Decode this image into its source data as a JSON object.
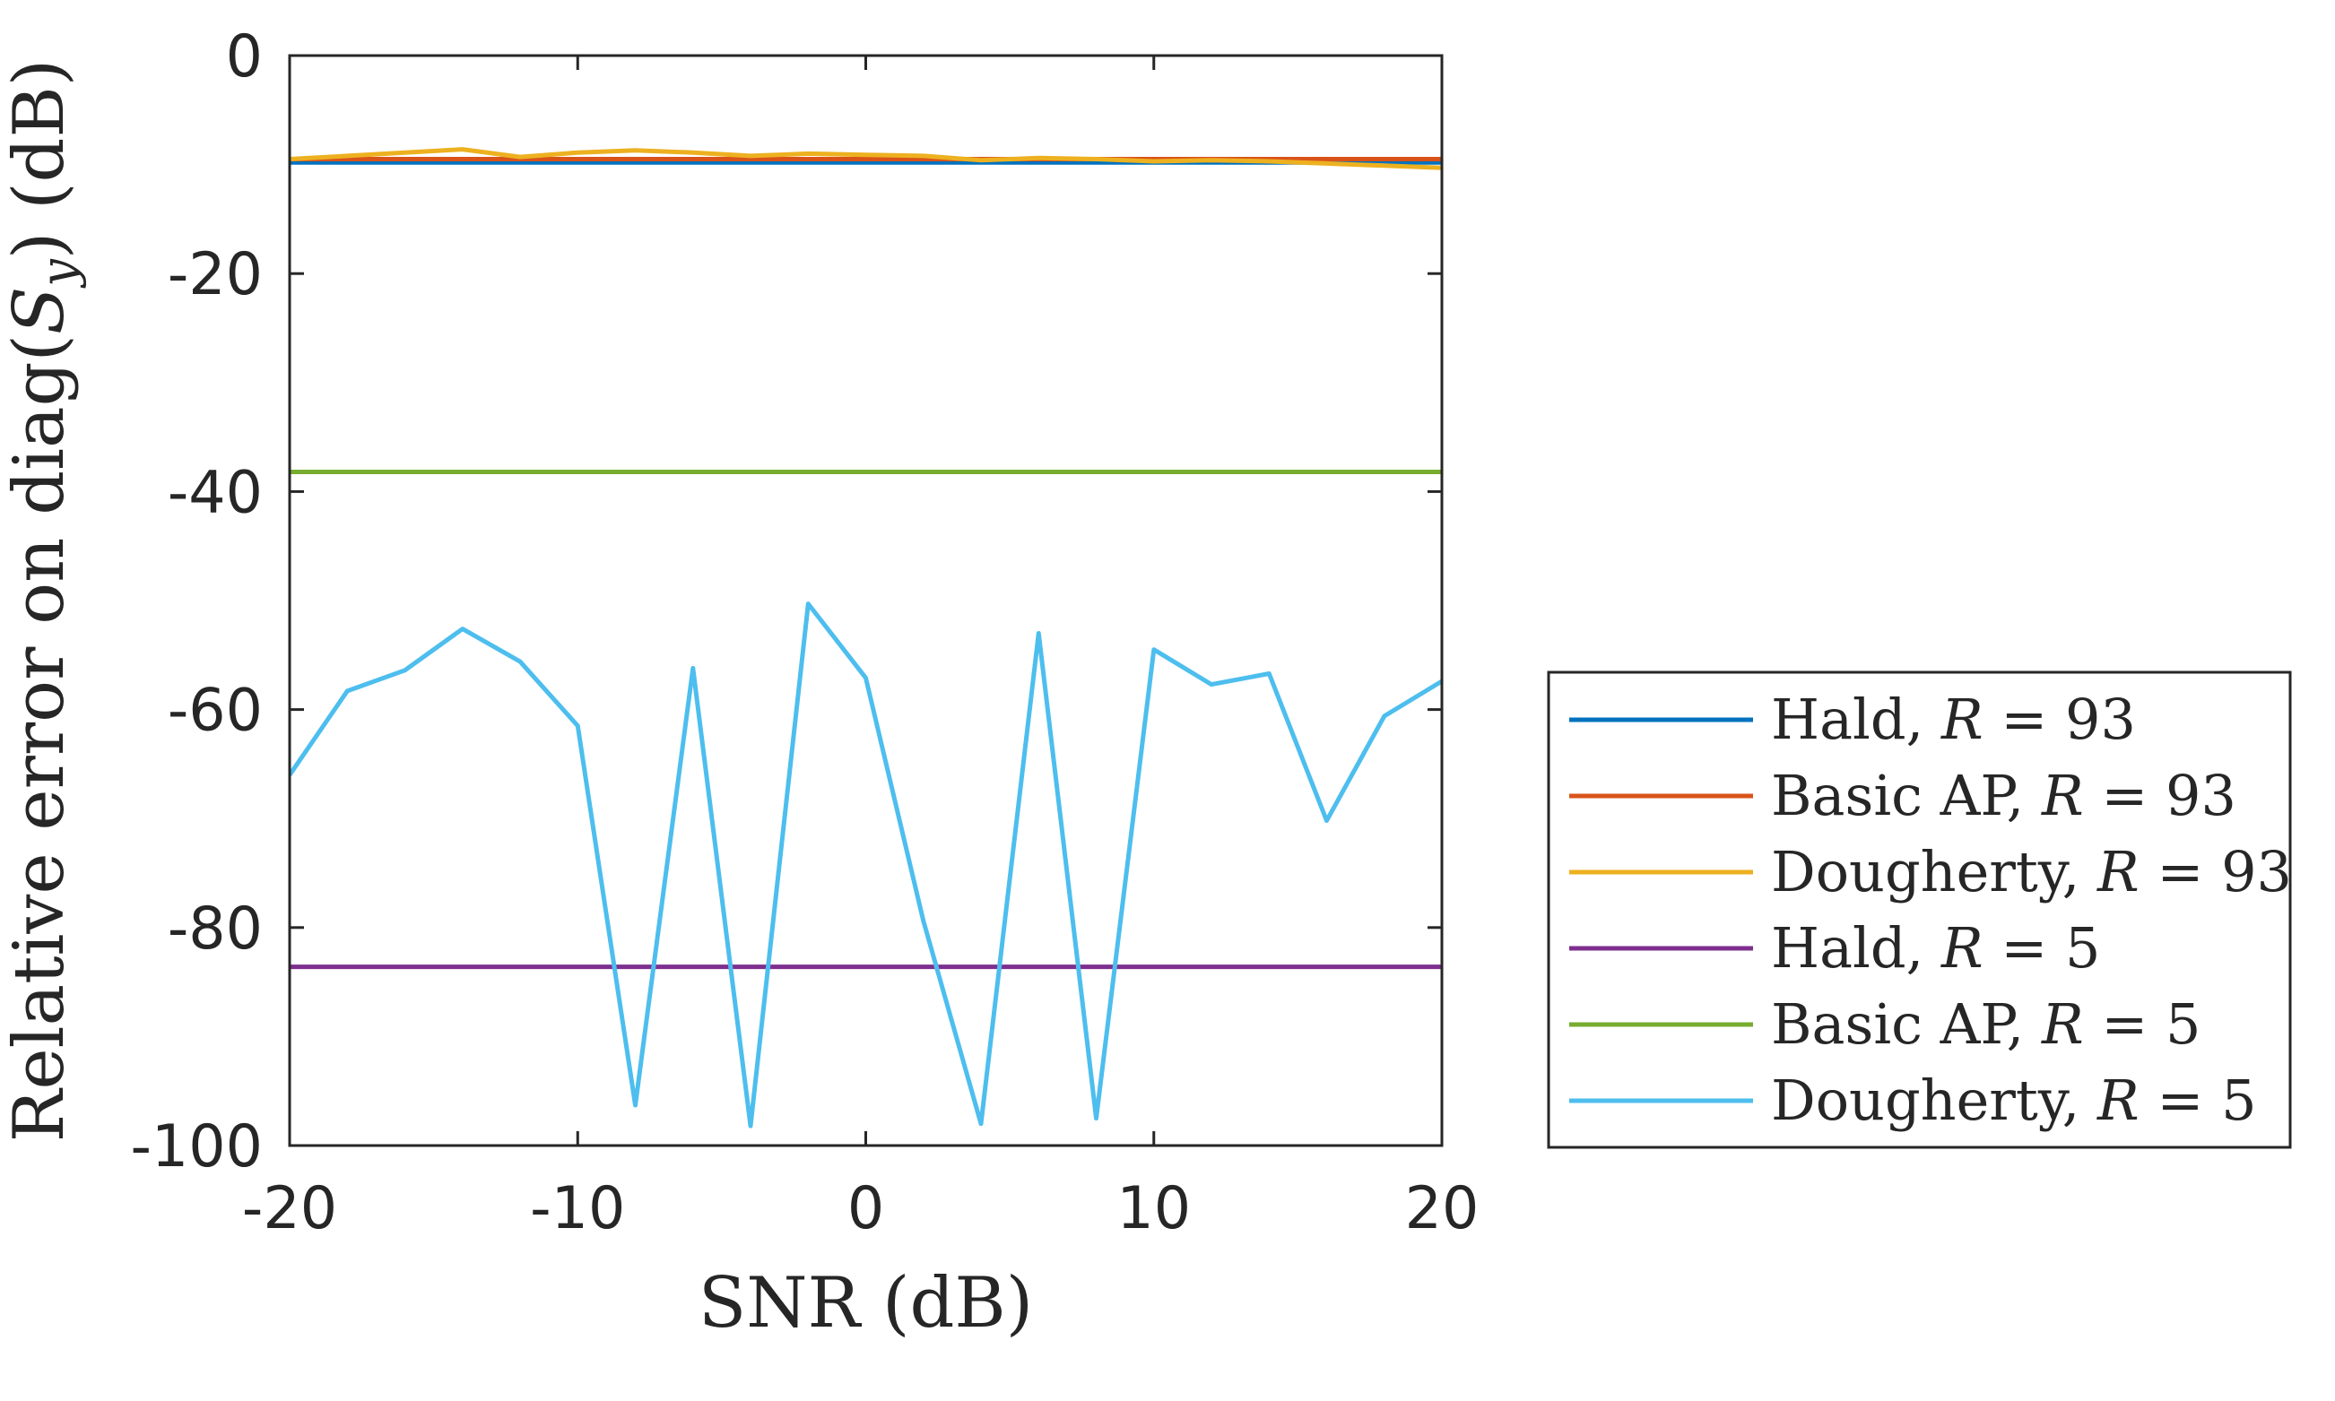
{
  "chart_data": {
    "type": "line",
    "xlabel": "SNR (dB)",
    "ylabel": {
      "prefix": "Relative error on diag(",
      "symbol": "S",
      "subscript": "y",
      "suffix": ") (dB)"
    },
    "xlim": [
      -20,
      20
    ],
    "ylim": [
      -100,
      0
    ],
    "xticks": [
      -20,
      -10,
      0,
      10,
      20
    ],
    "yticks": [
      0,
      -20,
      -40,
      -60,
      -80,
      -100
    ],
    "grid": false,
    "legend_position": "outside-right",
    "x": [
      -20,
      -18,
      -16,
      -14,
      -12,
      -10,
      -8,
      -6,
      -4,
      -2,
      0,
      2,
      4,
      6,
      8,
      10,
      12,
      14,
      16,
      18,
      20
    ],
    "series": [
      {
        "name": "Hald, R = 93",
        "legend": {
          "text": "Hald, ",
          "var": "R",
          "rest": " = 93"
        },
        "color": "#0072BD",
        "values": [
          -9.8,
          -9.8,
          -9.8,
          -9.8,
          -9.8,
          -9.8,
          -9.8,
          -9.8,
          -9.8,
          -9.8,
          -9.8,
          -9.8,
          -9.8,
          -9.8,
          -9.8,
          -9.8,
          -9.8,
          -9.8,
          -9.8,
          -9.8,
          -9.8
        ]
      },
      {
        "name": "Basic AP, R = 93",
        "legend": {
          "text": "Basic AP, ",
          "var": "R",
          "rest": " = 93"
        },
        "color": "#D95319",
        "values": [
          -9.5,
          -9.5,
          -9.5,
          -9.5,
          -9.5,
          -9.5,
          -9.5,
          -9.5,
          -9.5,
          -9.5,
          -9.5,
          -9.5,
          -9.5,
          -9.5,
          -9.5,
          -9.5,
          -9.5,
          -9.5,
          -9.5,
          -9.5,
          -9.5
        ]
      },
      {
        "name": "Dougherty, R = 93",
        "legend": {
          "text": "Dougherty, ",
          "var": "R",
          "rest": " = 93"
        },
        "color": "#EDB120",
        "values": [
          -9.5,
          -9.2,
          -8.9,
          -8.6,
          -9.3,
          -8.9,
          -8.7,
          -8.9,
          -9.2,
          -9.0,
          -9.1,
          -9.2,
          -9.6,
          -9.4,
          -9.5,
          -9.7,
          -9.6,
          -9.7,
          -9.9,
          -10.1,
          -10.3
        ]
      },
      {
        "name": "Hald, R = 5",
        "legend": {
          "text": "Hald, ",
          "var": "R",
          "rest": " = 5"
        },
        "color": "#7E2F8E",
        "values": [
          -83.6,
          -83.6,
          -83.6,
          -83.6,
          -83.6,
          -83.6,
          -83.6,
          -83.6,
          -83.6,
          -83.6,
          -83.6,
          -83.6,
          -83.6,
          -83.6,
          -83.6,
          -83.6,
          -83.6,
          -83.6,
          -83.6,
          -83.6,
          -83.6
        ]
      },
      {
        "name": "Basic AP, R = 5",
        "legend": {
          "text": "Basic AP, ",
          "var": "R",
          "rest": " = 5"
        },
        "color": "#77AC30",
        "values": [
          -38.2,
          -38.2,
          -38.2,
          -38.2,
          -38.2,
          -38.2,
          -38.2,
          -38.2,
          -38.2,
          -38.2,
          -38.2,
          -38.2,
          -38.2,
          -38.2,
          -38.2,
          -38.2,
          -38.2,
          -38.2,
          -38.2,
          -38.2,
          -38.2
        ]
      },
      {
        "name": "Dougherty, R = 5",
        "legend": {
          "text": "Dougherty, ",
          "var": "R",
          "rest": " = 5"
        },
        "color": "#4DBEEE",
        "values": [
          -66.0,
          -58.3,
          -56.4,
          -52.6,
          -55.6,
          -61.5,
          -96.3,
          -56.2,
          -98.2,
          -50.3,
          -57.1,
          -79.4,
          -98.0,
          -53.0,
          -97.5,
          -54.5,
          -57.7,
          -56.7,
          -70.2,
          -60.6,
          -57.4
        ]
      }
    ]
  }
}
